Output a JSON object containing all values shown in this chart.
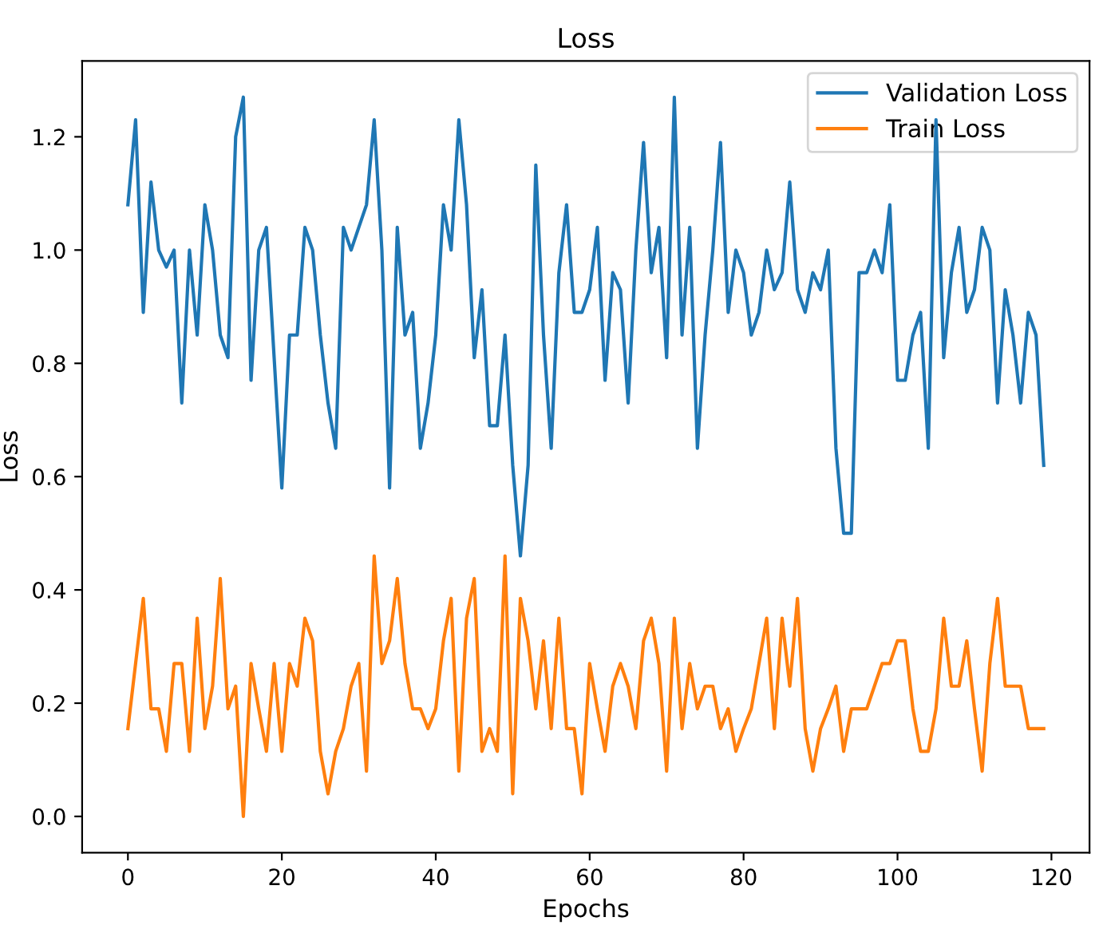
{
  "chart_data": {
    "type": "line",
    "title": "Loss",
    "xlabel": "Epochs",
    "ylabel": "Loss",
    "x": [
      0,
      1,
      2,
      3,
      4,
      5,
      6,
      7,
      8,
      9,
      10,
      11,
      12,
      13,
      14,
      15,
      16,
      17,
      18,
      19,
      20,
      21,
      22,
      23,
      24,
      25,
      26,
      27,
      28,
      29,
      30,
      31,
      32,
      33,
      34,
      35,
      36,
      37,
      38,
      39,
      40,
      41,
      42,
      43,
      44,
      45,
      46,
      47,
      48,
      49,
      50,
      51,
      52,
      53,
      54,
      55,
      56,
      57,
      58,
      59,
      60,
      61,
      62,
      63,
      64,
      65,
      66,
      67,
      68,
      69,
      70,
      71,
      72,
      73,
      74,
      75,
      76,
      77,
      78,
      79,
      80,
      81,
      82,
      83,
      84,
      85,
      86,
      87,
      88,
      89,
      90,
      91,
      92,
      93,
      94,
      95,
      96,
      97,
      98,
      99,
      100,
      101,
      102,
      103,
      104,
      105,
      106,
      107,
      108,
      109,
      110,
      111,
      112,
      113,
      114,
      115,
      116,
      117,
      118,
      119
    ],
    "series": [
      {
        "name": "Validation Loss",
        "color": "#1f77b4",
        "values": [
          1.08,
          1.23,
          0.89,
          1.12,
          1.0,
          0.97,
          1.0,
          0.73,
          1.0,
          0.85,
          1.08,
          1.0,
          0.85,
          0.81,
          1.2,
          1.27,
          0.77,
          1.0,
          1.04,
          0.81,
          0.58,
          0.85,
          0.85,
          1.04,
          1.0,
          0.85,
          0.73,
          0.65,
          1.04,
          1.0,
          1.04,
          1.08,
          1.23,
          1.0,
          0.58,
          1.04,
          0.85,
          0.89,
          0.65,
          0.73,
          0.85,
          1.08,
          1.0,
          1.23,
          1.08,
          0.81,
          0.93,
          0.69,
          0.69,
          0.85,
          0.62,
          0.46,
          0.62,
          1.15,
          0.85,
          0.65,
          0.96,
          1.08,
          0.89,
          0.89,
          0.93,
          1.04,
          0.77,
          0.96,
          0.93,
          0.73,
          1.0,
          1.19,
          0.96,
          1.04,
          0.81,
          1.27,
          0.85,
          1.04,
          0.65,
          0.85,
          1.0,
          1.19,
          0.89,
          1.0,
          0.96,
          0.85,
          0.89,
          1.0,
          0.93,
          0.96,
          1.12,
          0.93,
          0.89,
          0.96,
          0.93,
          1.0,
          0.65,
          0.5,
          0.5,
          0.96,
          0.96,
          1.0,
          0.96,
          1.08,
          0.77,
          0.77,
          0.85,
          0.89,
          0.65,
          1.23,
          0.81,
          0.96,
          1.04,
          0.89,
          0.93,
          1.04,
          1.0,
          0.73,
          0.93,
          0.85,
          0.73,
          0.89,
          0.85,
          0.62
        ]
      },
      {
        "name": "Train Loss",
        "color": "#ff7f0e",
        "values": [
          0.155,
          0.27,
          0.385,
          0.19,
          0.19,
          0.115,
          0.27,
          0.27,
          0.115,
          0.35,
          0.155,
          0.23,
          0.42,
          0.19,
          0.23,
          0.0,
          0.27,
          0.19,
          0.115,
          0.27,
          0.115,
          0.27,
          0.23,
          0.35,
          0.31,
          0.115,
          0.04,
          0.115,
          0.155,
          0.23,
          0.27,
          0.08,
          0.46,
          0.27,
          0.31,
          0.42,
          0.27,
          0.19,
          0.19,
          0.155,
          0.19,
          0.31,
          0.385,
          0.08,
          0.35,
          0.42,
          0.115,
          0.155,
          0.115,
          0.46,
          0.04,
          0.385,
          0.31,
          0.19,
          0.31,
          0.155,
          0.35,
          0.155,
          0.155,
          0.04,
          0.27,
          0.19,
          0.115,
          0.23,
          0.27,
          0.23,
          0.155,
          0.31,
          0.35,
          0.27,
          0.08,
          0.35,
          0.155,
          0.27,
          0.19,
          0.23,
          0.23,
          0.155,
          0.19,
          0.115,
          0.155,
          0.19,
          0.27,
          0.35,
          0.155,
          0.35,
          0.23,
          0.385,
          0.155,
          0.08,
          0.155,
          0.19,
          0.23,
          0.115,
          0.19,
          0.19,
          0.19,
          0.23,
          0.27,
          0.27,
          0.31,
          0.31,
          0.19,
          0.115,
          0.115,
          0.19,
          0.35,
          0.23,
          0.23,
          0.31,
          0.19,
          0.08,
          0.27,
          0.385,
          0.23,
          0.23,
          0.23,
          0.155,
          0.155,
          0.155
        ]
      }
    ],
    "xlim": [
      -5.95,
      124.95
    ],
    "xticks": [
      0,
      20,
      40,
      60,
      80,
      100,
      120
    ],
    "ylim": [
      -0.064,
      1.334
    ],
    "yticks": [
      {
        "value": 0.0,
        "label": "0.0"
      },
      {
        "value": 0.2,
        "label": "0.2"
      },
      {
        "value": 0.4,
        "label": "0.4"
      },
      {
        "value": 0.6,
        "label": "0.6"
      },
      {
        "value": 0.8,
        "label": "0.8"
      },
      {
        "value": 1.0,
        "label": "1.0"
      },
      {
        "value": 1.2,
        "label": "1.2"
      }
    ],
    "legend": "top right",
    "grid": false,
    "line_style": "solid",
    "marker": "none"
  }
}
